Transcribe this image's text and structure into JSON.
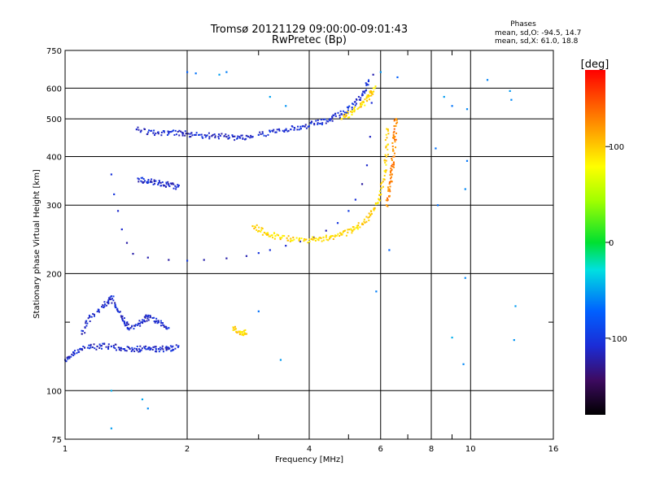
{
  "chart_data": {
    "type": "scatter",
    "title": "Tromsø 20121129 09:00:00-09:01:43",
    "subtitle": "RwPretec (Bp)",
    "xlabel": "Frequency [MHz]",
    "ylabel": "Stationary phase Virtual Height [km]",
    "x_scale": "log",
    "y_scale": "log",
    "xlim": [
      1,
      16
    ],
    "ylim": [
      75,
      750
    ],
    "x_ticks": [
      1,
      2,
      4,
      6,
      8,
      10,
      16
    ],
    "x_tick_labels": [
      "1",
      "2",
      "4",
      "6",
      "8",
      "10",
      "16"
    ],
    "x_minor_ticks": [
      3,
      5,
      7,
      9
    ],
    "y_ticks": [
      75,
      100,
      200,
      300,
      400,
      500,
      600,
      750
    ],
    "y_tick_labels": [
      "75",
      "100",
      "200",
      "300",
      "400",
      "500",
      "600",
      "750"
    ],
    "y_minor_ticks": [
      150
    ],
    "grid": true,
    "stats_title": "Phases",
    "stats_o": "mean, sd,O: -94.5, 14.7",
    "stats_x": "mean, sd,X:  61.0, 18.8",
    "colorbar": {
      "label": "[deg]",
      "range": [
        -180,
        180
      ],
      "ticks": [
        100,
        0,
        -100
      ],
      "tick_labels": [
        "100",
        "0",
        "-100"
      ]
    },
    "series": [
      {
        "points": [
          [
            1.5,
            470
          ],
          [
            1.65,
            460
          ],
          [
            1.8,
            462
          ],
          [
            1.95,
            458
          ],
          [
            2.1,
            455
          ],
          [
            2.3,
            452
          ],
          [
            2.5,
            450
          ],
          [
            2.7,
            447
          ],
          [
            2.9,
            450
          ]
        ],
        "phase": -110
      },
      {
        "points": [
          [
            3.0,
            455
          ],
          [
            3.3,
            462
          ],
          [
            3.6,
            470
          ],
          [
            3.9,
            478
          ],
          [
            4.2,
            488
          ],
          [
            4.5,
            500
          ],
          [
            4.8,
            515
          ],
          [
            5.1,
            535
          ],
          [
            5.4,
            575
          ],
          [
            5.6,
            625
          ]
        ],
        "phase": -105
      },
      {
        "points": [
          [
            4.8,
            500
          ],
          [
            5.1,
            520
          ],
          [
            5.4,
            545
          ],
          [
            5.6,
            570
          ],
          [
            5.8,
            600
          ]
        ],
        "phase": 95
      },
      {
        "points": [
          [
            1.52,
            350
          ],
          [
            1.6,
            345
          ],
          [
            1.7,
            342
          ],
          [
            1.8,
            338
          ],
          [
            1.9,
            335
          ]
        ],
        "phase": -110
      },
      {
        "points": [
          [
            1.3,
            360
          ],
          [
            1.32,
            320
          ],
          [
            1.35,
            290
          ],
          [
            1.38,
            260
          ],
          [
            1.42,
            240
          ],
          [
            1.47,
            225
          ],
          [
            1.6,
            220
          ],
          [
            1.8,
            217
          ],
          [
            2.0,
            216
          ],
          [
            2.2,
            217
          ],
          [
            2.5,
            219
          ],
          [
            2.8,
            222
          ],
          [
            3.0,
            226
          ],
          [
            3.2,
            230
          ],
          [
            3.5,
            236
          ],
          [
            3.8,
            242
          ],
          [
            4.1,
            248
          ],
          [
            4.4,
            258
          ],
          [
            4.7,
            270
          ],
          [
            5.0,
            290
          ],
          [
            5.2,
            310
          ],
          [
            5.4,
            340
          ],
          [
            5.55,
            380
          ],
          [
            5.65,
            450
          ],
          [
            5.7,
            550
          ],
          [
            5.75,
            650
          ]
        ],
        "phase": -110
      },
      {
        "points": [
          [
            2.9,
            265
          ],
          [
            3.1,
            255
          ],
          [
            3.3,
            250
          ],
          [
            3.6,
            246
          ],
          [
            3.9,
            244
          ],
          [
            4.2,
            245
          ],
          [
            4.5,
            248
          ],
          [
            4.8,
            252
          ],
          [
            5.1,
            258
          ],
          [
            5.4,
            268
          ],
          [
            5.7,
            285
          ],
          [
            5.95,
            310
          ],
          [
            6.1,
            350
          ],
          [
            6.2,
            400
          ],
          [
            6.25,
            470
          ]
        ],
        "phase": 95
      },
      {
        "points": [
          [
            6.2,
            300
          ],
          [
            6.3,
            330
          ],
          [
            6.4,
            360
          ],
          [
            6.45,
            400
          ],
          [
            6.5,
            450
          ],
          [
            6.55,
            500
          ]
        ],
        "phase": 130
      },
      {
        "points": [
          [
            1.0,
            120
          ],
          [
            1.05,
            125
          ],
          [
            1.1,
            128
          ],
          [
            1.2,
            130
          ],
          [
            1.3,
            130
          ],
          [
            1.4,
            128
          ],
          [
            1.5,
            128
          ],
          [
            1.6,
            128
          ],
          [
            1.7,
            128
          ],
          [
            1.8,
            128
          ],
          [
            1.9,
            130
          ]
        ],
        "phase": -110
      },
      {
        "points": [
          [
            1.1,
            140
          ],
          [
            1.15,
            155
          ],
          [
            1.25,
            165
          ],
          [
            1.3,
            175
          ],
          [
            1.35,
            160
          ],
          [
            1.4,
            150
          ],
          [
            1.45,
            145
          ],
          [
            1.55,
            150
          ],
          [
            1.6,
            155
          ],
          [
            1.7,
            150
          ],
          [
            1.8,
            145
          ]
        ],
        "phase": -110
      },
      {
        "points": [
          [
            2.6,
            145
          ],
          [
            2.7,
            142
          ],
          [
            2.8,
            140
          ]
        ],
        "phase": 95
      },
      {
        "points": [
          [
            2.0,
            660
          ],
          [
            2.1,
            655
          ],
          [
            2.4,
            650
          ],
          [
            2.5,
            660
          ],
          [
            3.2,
            570
          ],
          [
            3.5,
            540
          ],
          [
            6.0,
            660
          ],
          [
            6.6,
            640
          ],
          [
            8.6,
            570
          ],
          [
            9.0,
            540
          ],
          [
            9.8,
            530
          ],
          [
            11.0,
            630
          ],
          [
            12.5,
            590
          ],
          [
            12.6,
            560
          ],
          [
            8.2,
            420
          ],
          [
            9.8,
            390
          ],
          [
            9.7,
            330
          ],
          [
            9.7,
            195
          ],
          [
            9.6,
            117
          ],
          [
            9.0,
            137
          ],
          [
            12.8,
            135
          ],
          [
            12.9,
            165
          ],
          [
            8.3,
            300
          ],
          [
            6.3,
            230
          ],
          [
            5.85,
            180
          ],
          [
            3.4,
            120
          ],
          [
            3.0,
            160
          ],
          [
            1.3,
            100
          ],
          [
            1.55,
            95
          ],
          [
            1.6,
            90
          ],
          [
            1.3,
            80
          ]
        ],
        "phase": -60
      }
    ]
  }
}
